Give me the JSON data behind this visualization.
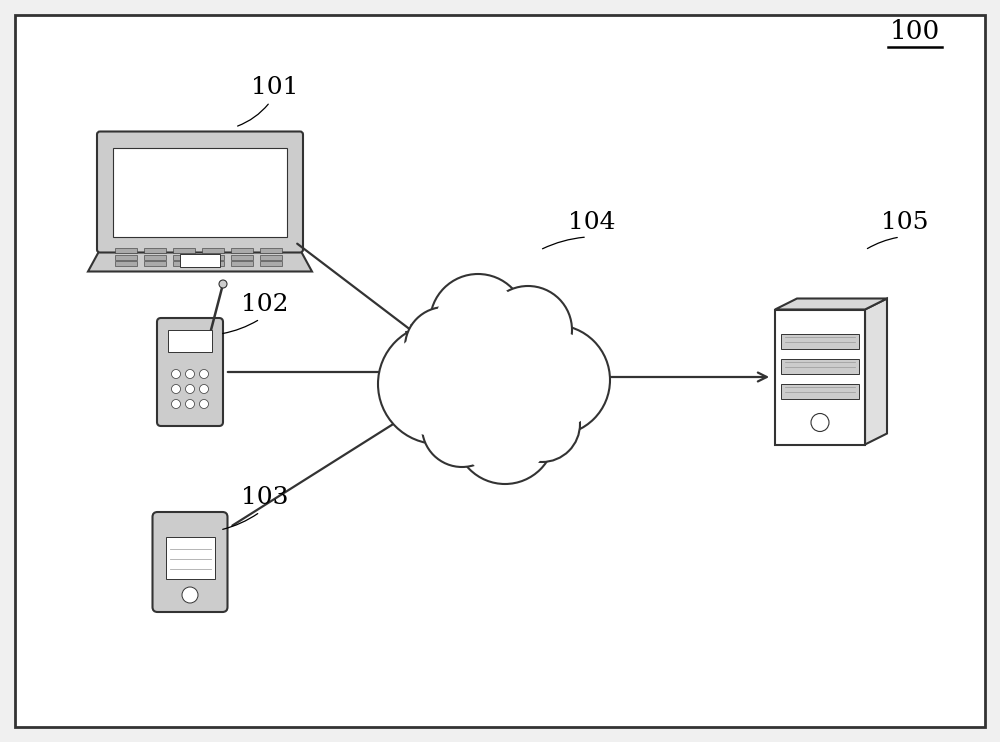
{
  "bg_color": "#f0f0f0",
  "border_color": "#333333",
  "label_100": "100",
  "label_101": "101",
  "label_102": "102",
  "label_103": "103",
  "label_104": "104",
  "label_105": "105",
  "label_fontsize": 18,
  "arrow_color": "#333333",
  "device_color": "#cccccc",
  "cloud_color": "#ffffff",
  "cloud_outline": "#333333",
  "lw": 1.5
}
